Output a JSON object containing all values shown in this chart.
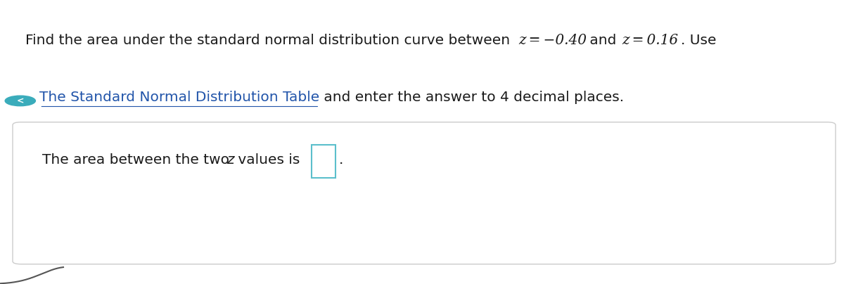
{
  "line1_regular": "Find the area under the standard normal distribution curve between ",
  "line1_math": "z = −0.40",
  "line1_mid": " and ",
  "line1_math2": "z = 0.16",
  "line1_end": ". Use",
  "line2_link": "The Standard Normal Distribution Table",
  "line2_end": " and enter the answer to 4 decimal places.",
  "line3_text1": "The area between the two ",
  "line3_italic": "z",
  "line3_text2": " values is",
  "bg_color": "#ffffff",
  "text_color": "#1a1a1a",
  "link_color": "#2255aa",
  "box_border_color": "#5bbfcc",
  "box_bg_color": "#ffffff",
  "panel_border_color": "#cccccc",
  "panel_bg_color": "#ffffff",
  "font_size_main": 14.5,
  "font_size_box": 13
}
